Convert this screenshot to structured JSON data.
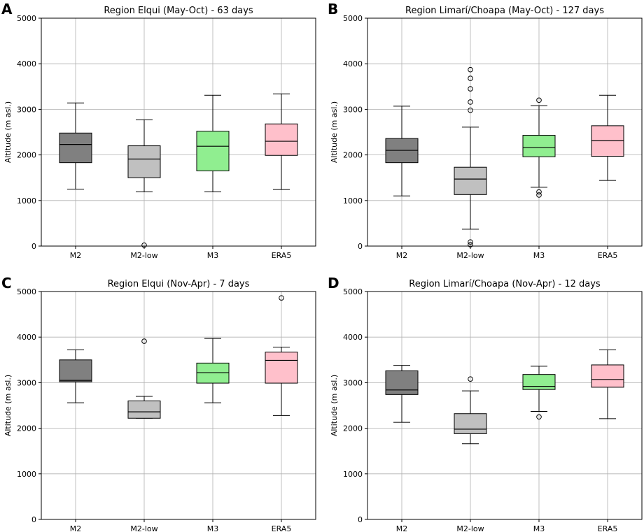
{
  "chart_data": [
    {
      "type": "box",
      "letter": "A",
      "title": "Region Elqui (May-Oct) - 63 days",
      "ylabel": "Altitude (m asl.)",
      "ylim": [
        0,
        5000
      ],
      "yticks": [
        0,
        1000,
        2000,
        3000,
        4000,
        5000
      ],
      "categories": [
        "M2",
        "M2-low",
        "M3",
        "ERA5"
      ],
      "boxes": [
        {
          "name": "M2",
          "whislo": 1250,
          "q1": 1830,
          "med": 2230,
          "q3": 2480,
          "whishi": 3140,
          "fliers": []
        },
        {
          "name": "M2-low",
          "whislo": 1190,
          "q1": 1500,
          "med": 1910,
          "q3": 2200,
          "whishi": 2770,
          "fliers": [
            20
          ]
        },
        {
          "name": "M3",
          "whislo": 1190,
          "q1": 1650,
          "med": 2190,
          "q3": 2520,
          "whishi": 3310,
          "fliers": []
        },
        {
          "name": "ERA5",
          "whislo": 1240,
          "q1": 1990,
          "med": 2300,
          "q3": 2680,
          "whishi": 3340,
          "fliers": []
        }
      ]
    },
    {
      "type": "box",
      "letter": "B",
      "title": "Region Limarí/Choapa (May-Oct) - 127 days",
      "ylabel": "Altitude (m asl.)",
      "ylim": [
        0,
        5000
      ],
      "yticks": [
        0,
        1000,
        2000,
        3000,
        4000,
        5000
      ],
      "categories": [
        "M2",
        "M2-low",
        "M3",
        "ERA5"
      ],
      "boxes": [
        {
          "name": "M2",
          "whislo": 1100,
          "q1": 1830,
          "med": 2100,
          "q3": 2360,
          "whishi": 3070,
          "fliers": []
        },
        {
          "name": "M2-low",
          "whislo": 370,
          "q1": 1130,
          "med": 1470,
          "q3": 1730,
          "whishi": 2610,
          "fliers": [
            3870,
            3680,
            3450,
            3160,
            2980,
            90,
            30
          ]
        },
        {
          "name": "M3",
          "whislo": 1290,
          "q1": 1960,
          "med": 2160,
          "q3": 2430,
          "whishi": 3080,
          "fliers": [
            3200,
            1190,
            1120
          ]
        },
        {
          "name": "ERA5",
          "whislo": 1440,
          "q1": 1970,
          "med": 2310,
          "q3": 2640,
          "whishi": 3310,
          "fliers": []
        }
      ]
    },
    {
      "type": "box",
      "letter": "C",
      "title": "Region Elqui (Nov-Apr) - 7 days",
      "ylabel": "Altitude (m asl.)",
      "ylim": [
        0,
        5000
      ],
      "yticks": [
        0,
        1000,
        2000,
        3000,
        4000,
        5000
      ],
      "categories": [
        "M2",
        "M2-low",
        "M3",
        "ERA5"
      ],
      "boxes": [
        {
          "name": "M2",
          "whislo": 2560,
          "q1": 3020,
          "med": 3050,
          "q3": 3500,
          "whishi": 3720,
          "fliers": []
        },
        {
          "name": "M2-low",
          "whislo": 2220,
          "q1": 2220,
          "med": 2360,
          "q3": 2600,
          "whishi": 2700,
          "fliers": [
            3910
          ]
        },
        {
          "name": "M3",
          "whislo": 2560,
          "q1": 2990,
          "med": 3220,
          "q3": 3430,
          "whishi": 3970,
          "fliers": []
        },
        {
          "name": "ERA5",
          "whislo": 2280,
          "q1": 2990,
          "med": 3490,
          "q3": 3670,
          "whishi": 3780,
          "fliers": [
            4860
          ]
        }
      ]
    },
    {
      "type": "box",
      "letter": "D",
      "title": "Region Limarí/Choapa (Nov-Apr) - 12 days",
      "ylabel": "Altitude (m asl.)",
      "ylim": [
        0,
        5000
      ],
      "yticks": [
        0,
        1000,
        2000,
        3000,
        4000,
        5000
      ],
      "categories": [
        "M2",
        "M2-low",
        "M3",
        "ERA5"
      ],
      "boxes": [
        {
          "name": "M2",
          "whislo": 2130,
          "q1": 2740,
          "med": 2840,
          "q3": 3260,
          "whishi": 3380,
          "fliers": []
        },
        {
          "name": "M2-low",
          "whislo": 1660,
          "q1": 1880,
          "med": 1980,
          "q3": 2320,
          "whishi": 2820,
          "fliers": [
            3080
          ]
        },
        {
          "name": "M3",
          "whislo": 2370,
          "q1": 2850,
          "med": 2920,
          "q3": 3180,
          "whishi": 3360,
          "fliers": [
            2250
          ]
        },
        {
          "name": "ERA5",
          "whislo": 2210,
          "q1": 2900,
          "med": 3070,
          "q3": 3390,
          "whishi": 3720,
          "fliers": []
        }
      ]
    }
  ],
  "colors": {
    "M2": "#808080",
    "M2-low": "#c0c0c0",
    "M3": "#90ee90",
    "ERA5": "#ffc0cb",
    "grid": "#b0b0b0",
    "axis": "#000000"
  }
}
